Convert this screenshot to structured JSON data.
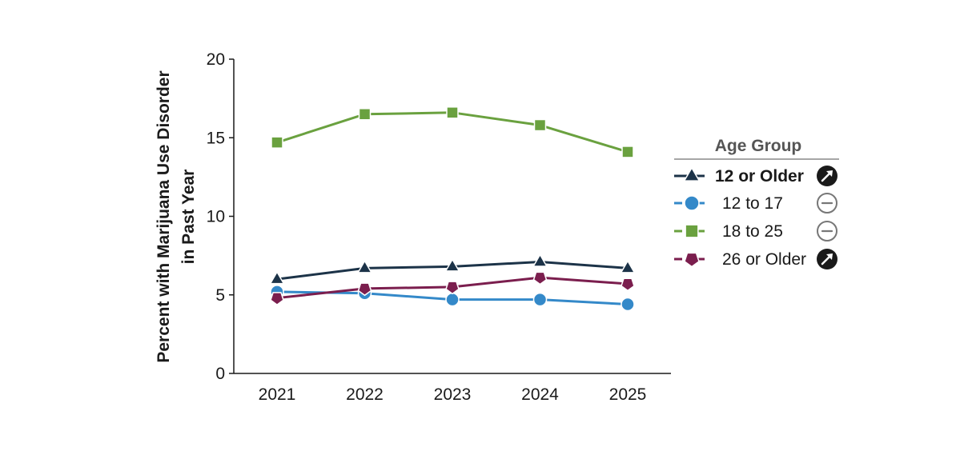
{
  "chart_data": {
    "type": "line",
    "x": [
      "2021",
      "2022",
      "2023",
      "2024",
      "2025"
    ],
    "ylabel_line1": "Percent with Marijuana Use Disorder",
    "ylabel_line2": "in Past Year",
    "xlabel": "",
    "ylim": [
      0,
      20
    ],
    "yticks": [
      "0",
      "5",
      "10",
      "15",
      "20"
    ],
    "grid": false,
    "legend": {
      "title": "Age Group",
      "placement": "right"
    },
    "series": [
      {
        "name": "12 or Older",
        "values": [
          6.0,
          6.7,
          6.8,
          7.1,
          6.7
        ],
        "color": "#1c3348",
        "marker": "triangle",
        "status": "increase",
        "status_icon": "arrow-up-right-icon",
        "bold": true
      },
      {
        "name": "12 to 17",
        "values": [
          5.2,
          5.1,
          4.7,
          4.7,
          4.4
        ],
        "color": "#3489c9",
        "marker": "circle",
        "status": "no change",
        "status_icon": "minus-circle-icon",
        "bold": false
      },
      {
        "name": "18 to 25",
        "values": [
          14.7,
          16.5,
          16.6,
          15.8,
          14.1
        ],
        "color": "#6aa13f",
        "marker": "square",
        "status": "no change",
        "status_icon": "minus-circle-icon",
        "bold": false
      },
      {
        "name": "26 or Older",
        "values": [
          4.8,
          5.4,
          5.5,
          6.1,
          5.7
        ],
        "color": "#7b1e4e",
        "marker": "pentagon",
        "status": "increase",
        "status_icon": "arrow-up-right-icon",
        "bold": false
      }
    ]
  }
}
